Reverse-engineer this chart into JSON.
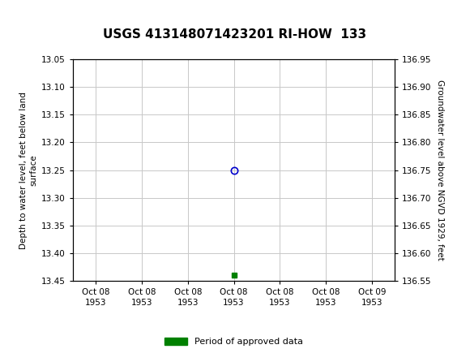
{
  "title": "USGS 413148071423201 RI-HOW  133",
  "ylabel_left": "Depth to water level, feet below land\nsurface",
  "ylabel_right": "Groundwater level above NGVD 1929, feet",
  "ylim_left": [
    13.45,
    13.05
  ],
  "ylim_right": [
    136.55,
    136.95
  ],
  "yticks_left": [
    13.05,
    13.1,
    13.15,
    13.2,
    13.25,
    13.3,
    13.35,
    13.4,
    13.45
  ],
  "yticks_right": [
    136.95,
    136.9,
    136.85,
    136.8,
    136.75,
    136.7,
    136.65,
    136.6,
    136.55
  ],
  "circle_point_x": 3.0,
  "circle_point_y": 13.25,
  "square_point_x": 3.0,
  "square_point_y": 13.44,
  "xtick_labels": [
    "Oct 08\n1953",
    "Oct 08\n1953",
    "Oct 08\n1953",
    "Oct 08\n1953",
    "Oct 08\n1953",
    "Oct 08\n1953",
    "Oct 09\n1953"
  ],
  "xtick_positions": [
    0,
    1,
    2,
    3,
    4,
    5,
    6
  ],
  "xlim": [
    -0.5,
    6.5
  ],
  "header_bg_color": "#1a7a3c",
  "header_text_color": "#ffffff",
  "plot_bg_color": "#ffffff",
  "outer_bg_color": "#ffffff",
  "grid_color": "#c8c8c8",
  "circle_color": "#0000cc",
  "square_color": "#008000",
  "legend_label": "Period of approved data",
  "title_fontsize": 11,
  "axis_label_fontsize": 7.5,
  "tick_fontsize": 7.5,
  "legend_fontsize": 8
}
